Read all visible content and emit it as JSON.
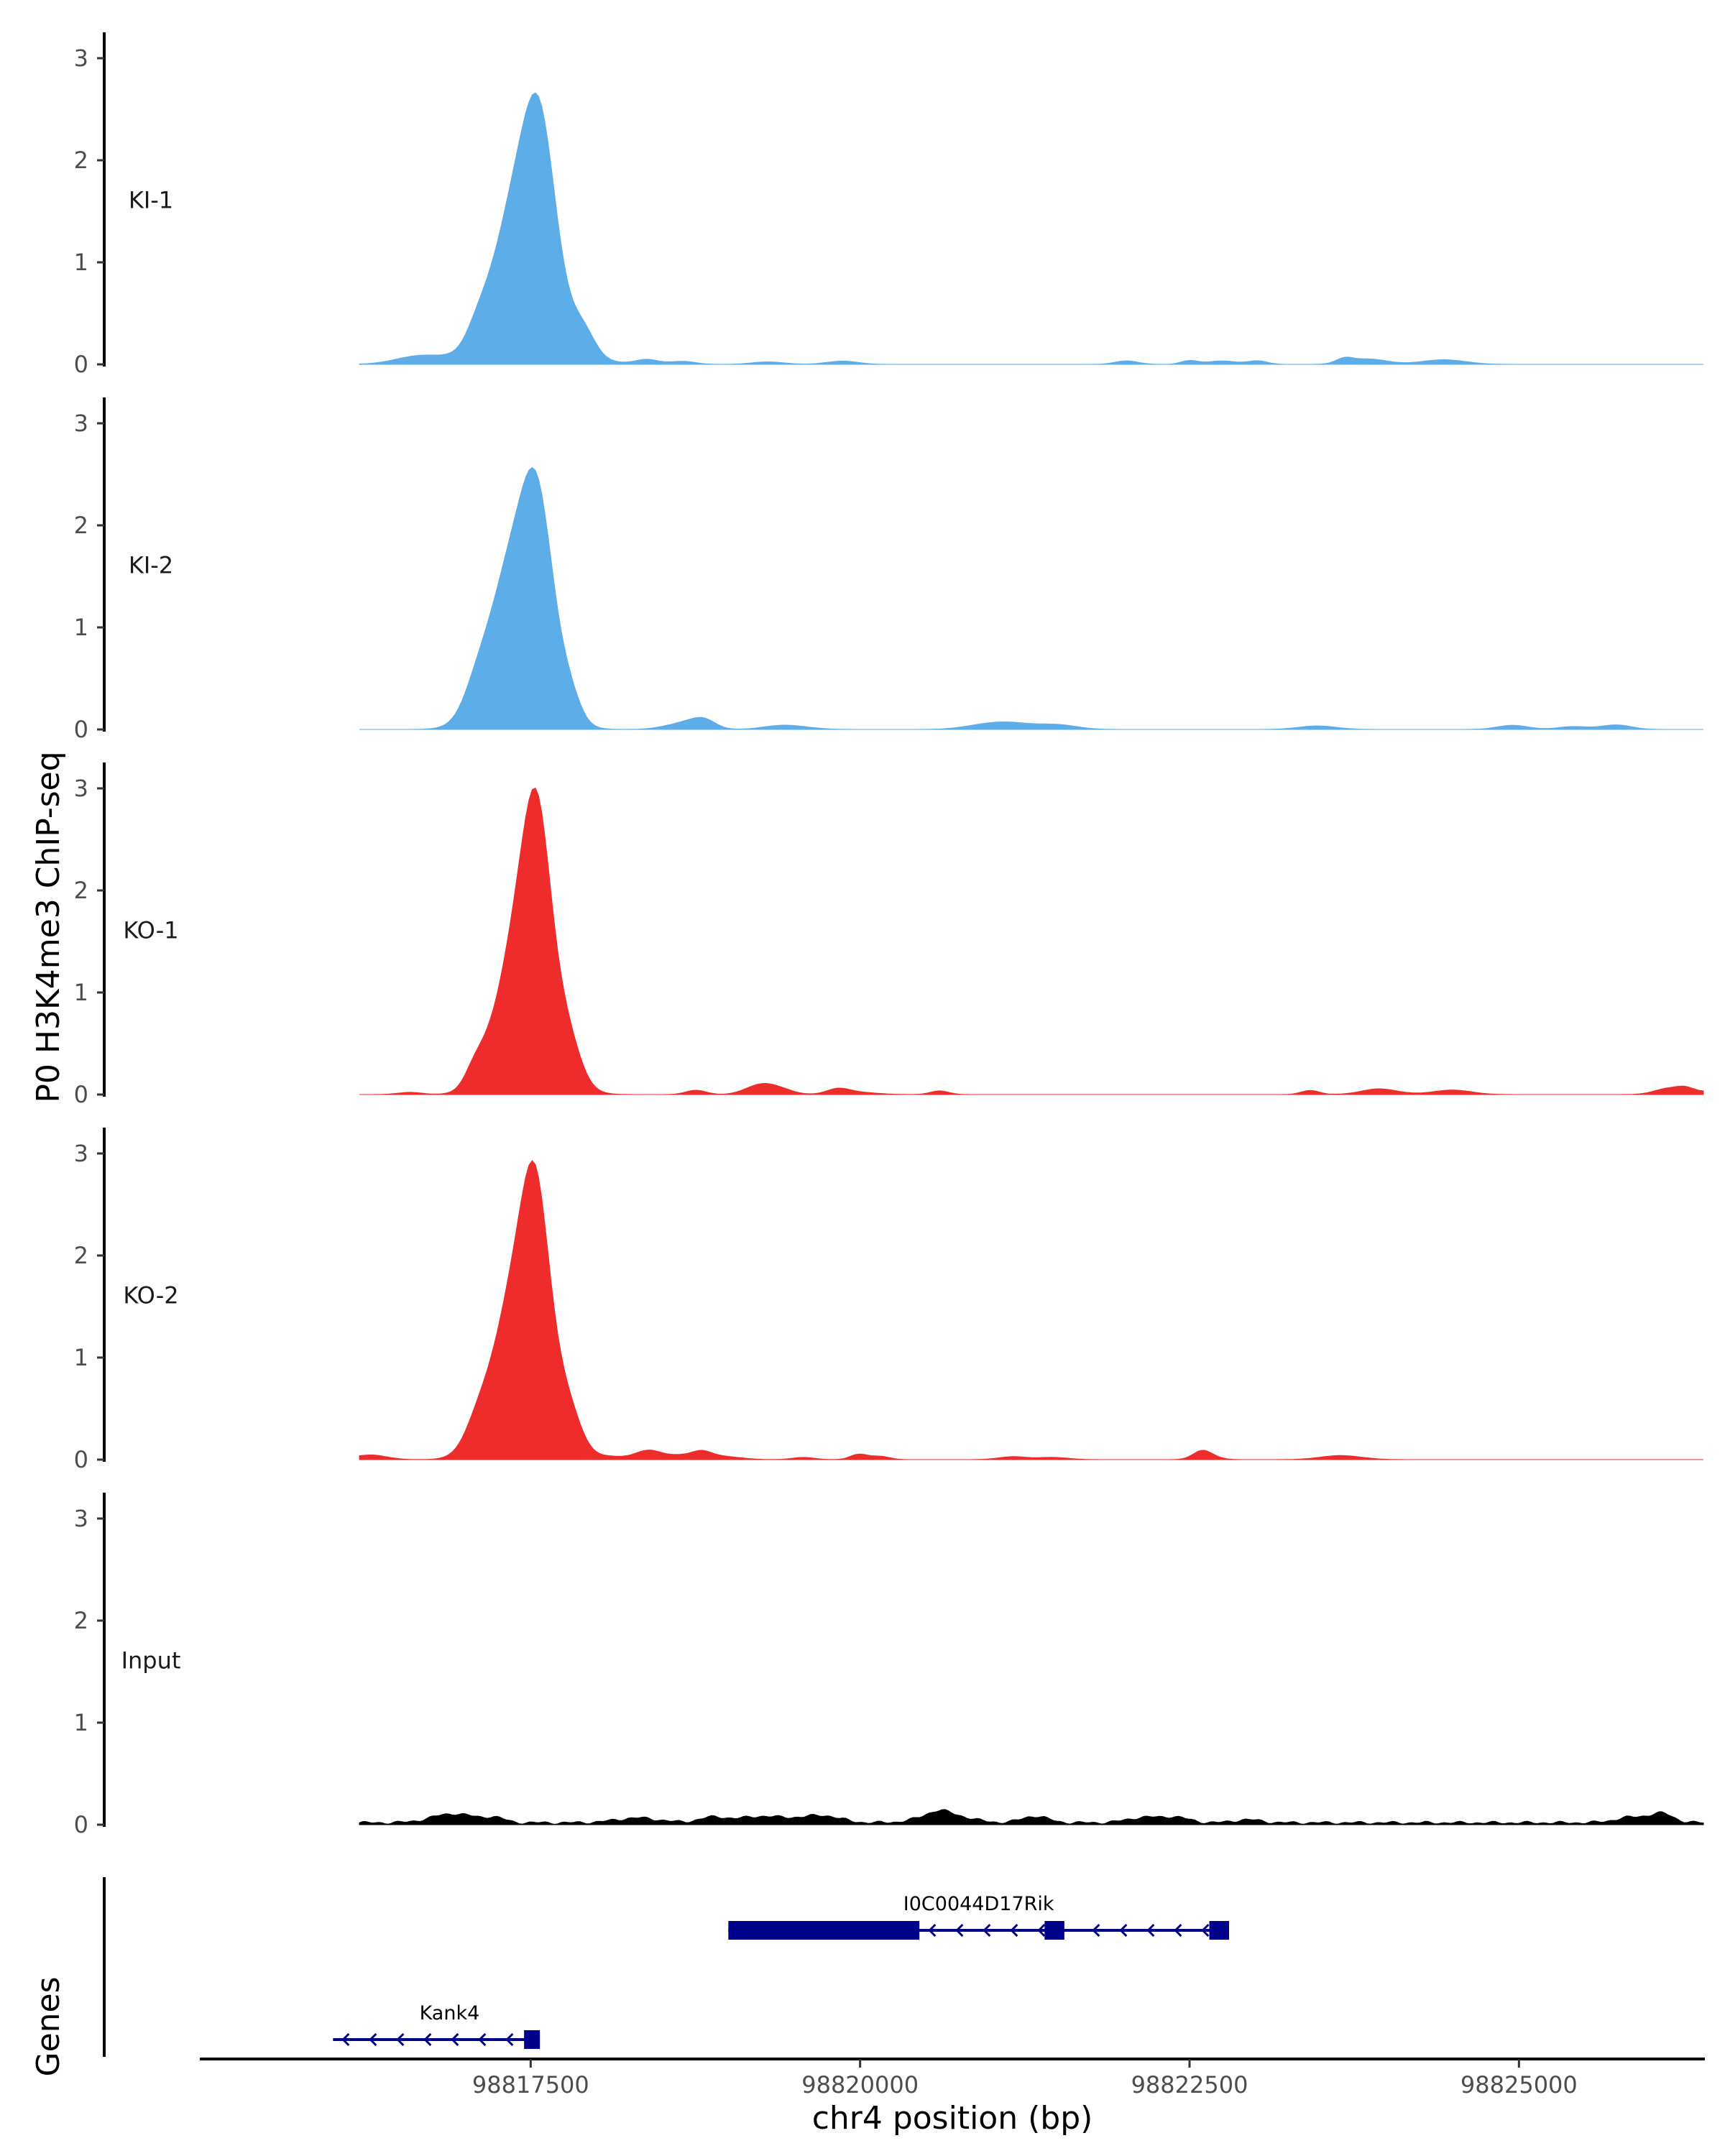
{
  "chart_data": {
    "type": "area",
    "title": "",
    "ylabel": "P0 H3K4me3 ChIP-seq",
    "xlabel": "chr4 position (bp)",
    "xlim": [
      98815000,
      98826400
    ],
    "x_ticks": [
      98817500,
      98820000,
      98822500,
      98825000
    ],
    "x_tick_labels": [
      "98817500",
      "98820000",
      "98822500",
      "98825000"
    ],
    "ylim": [
      0,
      3.2
    ],
    "y_ticks": [
      0,
      1,
      2,
      3
    ],
    "y_tick_labels": [
      "0",
      "1",
      "2",
      "3"
    ],
    "signal_start": 98816200,
    "signal_end": 98826400,
    "tracks": [
      {
        "name": "KI-1",
        "color": "#5dade9",
        "noise_seed": 11,
        "peaks": [
          {
            "center": 98817450,
            "height": 1.9,
            "sd": 200
          },
          {
            "center": 98817580,
            "height": 1.0,
            "sd": 110
          },
          {
            "center": 98817120,
            "height": 0.12,
            "sd": 90
          },
          {
            "center": 98817900,
            "height": 0.22,
            "sd": 90
          }
        ]
      },
      {
        "name": "KI-2",
        "color": "#5dade9",
        "noise_seed": 23,
        "peaks": [
          {
            "center": 98817400,
            "height": 1.8,
            "sd": 200
          },
          {
            "center": 98817560,
            "height": 1.1,
            "sd": 110
          },
          {
            "center": 98817100,
            "height": 0.12,
            "sd": 90
          },
          {
            "center": 98817800,
            "height": 0.18,
            "sd": 80
          }
        ]
      },
      {
        "name": "KO-1",
        "color": "#ee2c2c",
        "noise_seed": 37,
        "peaks": [
          {
            "center": 98817480,
            "height": 2.0,
            "sd": 190
          },
          {
            "center": 98817550,
            "height": 1.05,
            "sd": 95
          },
          {
            "center": 98817100,
            "height": 0.15,
            "sd": 90
          },
          {
            "center": 98817800,
            "height": 0.2,
            "sd": 90
          }
        ]
      },
      {
        "name": "KO-2",
        "color": "#ee2c2c",
        "noise_seed": 53,
        "peaks": [
          {
            "center": 98817450,
            "height": 2.0,
            "sd": 200
          },
          {
            "center": 98817540,
            "height": 1.05,
            "sd": 95
          },
          {
            "center": 98817100,
            "height": 0.15,
            "sd": 90
          },
          {
            "center": 98817800,
            "height": 0.2,
            "sd": 90
          }
        ]
      },
      {
        "name": "Input",
        "color": "#000000",
        "noise_seed": 71,
        "baseline": 0.035,
        "peaks": []
      }
    ],
    "genes_label": "Genes",
    "genes": [
      {
        "name": "I0C0044D17Rik",
        "strand": "-",
        "start": 98819000,
        "end": 98822800,
        "row": 0,
        "exons": [
          [
            98819000,
            98820450
          ],
          [
            98821400,
            98821550
          ],
          [
            98822650,
            98822800
          ]
        ]
      },
      {
        "name": "Kank4",
        "strand": "-",
        "start": 98816000,
        "end": 98817550,
        "row": 1,
        "exons": [
          [
            98817450,
            98817550
          ]
        ]
      }
    ],
    "gene_color": "#00008b"
  }
}
